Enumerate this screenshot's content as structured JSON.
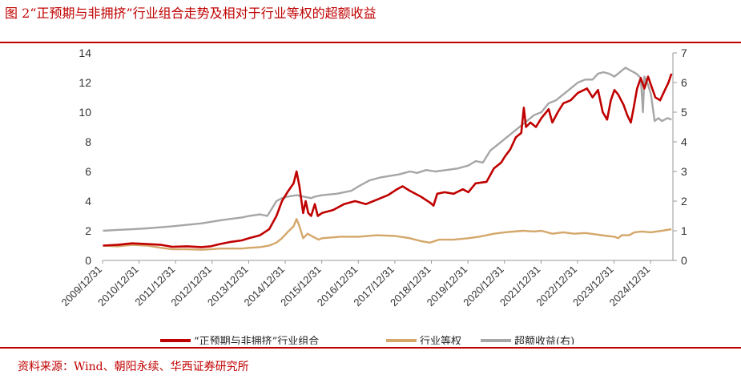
{
  "figure": {
    "title": "图 2“正预期与非拥挤”行业组合走势及相对于行业等权的超额收益",
    "source": "资料来源：Wind、朝阳永续、华西证券研究所"
  },
  "colors": {
    "accent": "#c00000",
    "portfolio": "#c00000",
    "equal_weight": "#d4a76a",
    "excess": "#a6a6a6",
    "axis": "#333333"
  },
  "chart_data": {
    "type": "line",
    "xlabel": "",
    "ylabel": "",
    "ylim": [
      0,
      14
    ],
    "yticks": [
      "0",
      "2",
      "4",
      "6",
      "8",
      "10",
      "12",
      "14"
    ],
    "y2lim": [
      0,
      7
    ],
    "y2ticks": [
      "0",
      "1",
      "2",
      "3",
      "4",
      "5",
      "6",
      "7"
    ],
    "xlim": [
      2009.99,
      2025.6
    ],
    "xtick_labels": [
      "2009/12/31",
      "2010/12/31",
      "2011/12/31",
      "2012/12/31",
      "2013/12/31",
      "2014/12/31",
      "2015/12/31",
      "2016/12/31",
      "2017/12/31",
      "2018/12/31",
      "2019/12/31",
      "2020/12/31",
      "2021/12/31",
      "2022/12/31",
      "2023/12/31",
      "2024/12/31"
    ],
    "legend_position": "bottom",
    "grid": false,
    "series": [
      {
        "name": "“正预期与非拥挤”行业组合",
        "axis": "left",
        "points": [
          [
            2010.0,
            1.0
          ],
          [
            2010.4,
            1.05
          ],
          [
            2010.8,
            1.15
          ],
          [
            2011.2,
            1.1
          ],
          [
            2011.6,
            1.05
          ],
          [
            2011.9,
            0.92
          ],
          [
            2012.3,
            0.95
          ],
          [
            2012.7,
            0.9
          ],
          [
            2012.95,
            0.95
          ],
          [
            2013.2,
            1.1
          ],
          [
            2013.5,
            1.25
          ],
          [
            2013.8,
            1.35
          ],
          [
            2014.0,
            1.5
          ],
          [
            2014.3,
            1.7
          ],
          [
            2014.55,
            2.1
          ],
          [
            2014.75,
            3.0
          ],
          [
            2014.9,
            4.0
          ],
          [
            2015.05,
            4.6
          ],
          [
            2015.22,
            5.2
          ],
          [
            2015.3,
            6.0
          ],
          [
            2015.38,
            5.0
          ],
          [
            2015.48,
            3.2
          ],
          [
            2015.55,
            4.0
          ],
          [
            2015.62,
            3.2
          ],
          [
            2015.7,
            3.0
          ],
          [
            2015.8,
            3.8
          ],
          [
            2015.88,
            3.0
          ],
          [
            2016.0,
            3.2
          ],
          [
            2016.3,
            3.4
          ],
          [
            2016.6,
            3.8
          ],
          [
            2016.9,
            4.0
          ],
          [
            2017.2,
            3.8
          ],
          [
            2017.5,
            4.1
          ],
          [
            2017.8,
            4.4
          ],
          [
            2018.05,
            4.8
          ],
          [
            2018.2,
            5.0
          ],
          [
            2018.4,
            4.7
          ],
          [
            2018.7,
            4.3
          ],
          [
            2018.95,
            3.9
          ],
          [
            2019.05,
            3.7
          ],
          [
            2019.15,
            4.5
          ],
          [
            2019.35,
            4.6
          ],
          [
            2019.6,
            4.5
          ],
          [
            2019.85,
            4.8
          ],
          [
            2020.0,
            4.6
          ],
          [
            2020.2,
            5.2
          ],
          [
            2020.5,
            5.3
          ],
          [
            2020.7,
            6.2
          ],
          [
            2020.9,
            6.6
          ],
          [
            2021.0,
            7.0
          ],
          [
            2021.15,
            7.5
          ],
          [
            2021.3,
            8.3
          ],
          [
            2021.45,
            8.6
          ],
          [
            2021.52,
            10.3
          ],
          [
            2021.58,
            9.0
          ],
          [
            2021.7,
            9.3
          ],
          [
            2021.85,
            9.0
          ],
          [
            2022.0,
            9.6
          ],
          [
            2022.2,
            10.2
          ],
          [
            2022.3,
            9.3
          ],
          [
            2022.45,
            10.0
          ],
          [
            2022.6,
            10.6
          ],
          [
            2022.8,
            10.8
          ],
          [
            2023.0,
            11.3
          ],
          [
            2023.25,
            11.6
          ],
          [
            2023.4,
            11.0
          ],
          [
            2023.55,
            11.5
          ],
          [
            2023.68,
            10.0
          ],
          [
            2023.8,
            9.5
          ],
          [
            2023.9,
            10.8
          ],
          [
            2024.0,
            11.5
          ],
          [
            2024.1,
            11.2
          ],
          [
            2024.25,
            10.5
          ],
          [
            2024.35,
            9.8
          ],
          [
            2024.45,
            9.3
          ],
          [
            2024.52,
            10.2
          ],
          [
            2024.62,
            11.6
          ],
          [
            2024.72,
            12.3
          ],
          [
            2024.82,
            11.6
          ],
          [
            2024.92,
            12.4
          ],
          [
            2025.02,
            11.7
          ],
          [
            2025.12,
            11.0
          ],
          [
            2025.25,
            10.8
          ],
          [
            2025.38,
            11.5
          ],
          [
            2025.48,
            12.0
          ],
          [
            2025.56,
            12.6
          ]
        ]
      },
      {
        "name": "行业等权",
        "axis": "left",
        "points": [
          [
            2010.0,
            1.0
          ],
          [
            2010.4,
            0.95
          ],
          [
            2010.8,
            1.05
          ],
          [
            2011.2,
            1.0
          ],
          [
            2011.6,
            0.85
          ],
          [
            2011.9,
            0.75
          ],
          [
            2012.3,
            0.75
          ],
          [
            2012.7,
            0.72
          ],
          [
            2012.95,
            0.75
          ],
          [
            2013.2,
            0.8
          ],
          [
            2013.5,
            0.8
          ],
          [
            2013.8,
            0.8
          ],
          [
            2014.0,
            0.85
          ],
          [
            2014.3,
            0.9
          ],
          [
            2014.55,
            1.0
          ],
          [
            2014.75,
            1.2
          ],
          [
            2014.9,
            1.5
          ],
          [
            2015.05,
            1.9
          ],
          [
            2015.22,
            2.3
          ],
          [
            2015.3,
            2.8
          ],
          [
            2015.38,
            2.3
          ],
          [
            2015.48,
            1.5
          ],
          [
            2015.6,
            1.8
          ],
          [
            2015.75,
            1.6
          ],
          [
            2015.9,
            1.4
          ],
          [
            2016.0,
            1.5
          ],
          [
            2016.5,
            1.6
          ],
          [
            2017.0,
            1.6
          ],
          [
            2017.5,
            1.7
          ],
          [
            2018.0,
            1.65
          ],
          [
            2018.4,
            1.5
          ],
          [
            2018.7,
            1.3
          ],
          [
            2018.95,
            1.2
          ],
          [
            2019.2,
            1.4
          ],
          [
            2019.6,
            1.4
          ],
          [
            2020.0,
            1.5
          ],
          [
            2020.3,
            1.6
          ],
          [
            2020.7,
            1.8
          ],
          [
            2021.0,
            1.9
          ],
          [
            2021.5,
            2.0
          ],
          [
            2021.8,
            1.95
          ],
          [
            2022.0,
            2.0
          ],
          [
            2022.3,
            1.8
          ],
          [
            2022.6,
            1.9
          ],
          [
            2022.9,
            1.8
          ],
          [
            2023.2,
            1.85
          ],
          [
            2023.5,
            1.75
          ],
          [
            2023.8,
            1.65
          ],
          [
            2024.0,
            1.6
          ],
          [
            2024.1,
            1.5
          ],
          [
            2024.2,
            1.7
          ],
          [
            2024.4,
            1.7
          ],
          [
            2024.55,
            1.9
          ],
          [
            2024.75,
            1.95
          ],
          [
            2025.0,
            1.9
          ],
          [
            2025.3,
            2.0
          ],
          [
            2025.56,
            2.1
          ]
        ]
      },
      {
        "name": "超额收益(右)",
        "axis": "right",
        "points": [
          [
            2010.0,
            1.0
          ],
          [
            2010.4,
            1.03
          ],
          [
            2010.8,
            1.05
          ],
          [
            2011.2,
            1.08
          ],
          [
            2011.6,
            1.12
          ],
          [
            2011.9,
            1.15
          ],
          [
            2012.3,
            1.2
          ],
          [
            2012.7,
            1.25
          ],
          [
            2012.95,
            1.3
          ],
          [
            2013.2,
            1.35
          ],
          [
            2013.5,
            1.4
          ],
          [
            2013.8,
            1.45
          ],
          [
            2014.0,
            1.5
          ],
          [
            2014.3,
            1.55
          ],
          [
            2014.5,
            1.5
          ],
          [
            2014.6,
            1.7
          ],
          [
            2014.75,
            2.0
          ],
          [
            2014.9,
            2.1
          ],
          [
            2015.05,
            2.15
          ],
          [
            2015.3,
            2.2
          ],
          [
            2015.5,
            2.15
          ],
          [
            2015.7,
            2.1
          ],
          [
            2015.8,
            2.15
          ],
          [
            2016.0,
            2.2
          ],
          [
            2016.4,
            2.25
          ],
          [
            2016.8,
            2.35
          ],
          [
            2017.0,
            2.5
          ],
          [
            2017.3,
            2.7
          ],
          [
            2017.6,
            2.8
          ],
          [
            2017.85,
            2.85
          ],
          [
            2018.1,
            2.9
          ],
          [
            2018.4,
            3.0
          ],
          [
            2018.6,
            2.95
          ],
          [
            2018.85,
            3.05
          ],
          [
            2019.1,
            3.0
          ],
          [
            2019.4,
            3.05
          ],
          [
            2019.7,
            3.1
          ],
          [
            2020.0,
            3.2
          ],
          [
            2020.2,
            3.35
          ],
          [
            2020.4,
            3.3
          ],
          [
            2020.6,
            3.7
          ],
          [
            2020.8,
            3.9
          ],
          [
            2021.0,
            4.1
          ],
          [
            2021.2,
            4.3
          ],
          [
            2021.4,
            4.5
          ],
          [
            2021.6,
            4.7
          ],
          [
            2021.8,
            4.9
          ],
          [
            2022.0,
            5.0
          ],
          [
            2022.2,
            5.3
          ],
          [
            2022.4,
            5.4
          ],
          [
            2022.6,
            5.6
          ],
          [
            2022.8,
            5.8
          ],
          [
            2023.0,
            6.0
          ],
          [
            2023.2,
            6.1
          ],
          [
            2023.4,
            6.1
          ],
          [
            2023.55,
            6.3
          ],
          [
            2023.7,
            6.35
          ],
          [
            2023.85,
            6.3
          ],
          [
            2024.0,
            6.2
          ],
          [
            2024.2,
            6.4
          ],
          [
            2024.3,
            6.5
          ],
          [
            2024.45,
            6.4
          ],
          [
            2024.6,
            6.3
          ],
          [
            2024.72,
            6.15
          ],
          [
            2024.78,
            5.0
          ],
          [
            2024.82,
            6.2
          ],
          [
            2024.9,
            6.0
          ],
          [
            2025.0,
            5.6
          ],
          [
            2025.1,
            4.7
          ],
          [
            2025.2,
            4.8
          ],
          [
            2025.3,
            4.7
          ],
          [
            2025.45,
            4.8
          ],
          [
            2025.56,
            4.75
          ]
        ]
      }
    ]
  }
}
